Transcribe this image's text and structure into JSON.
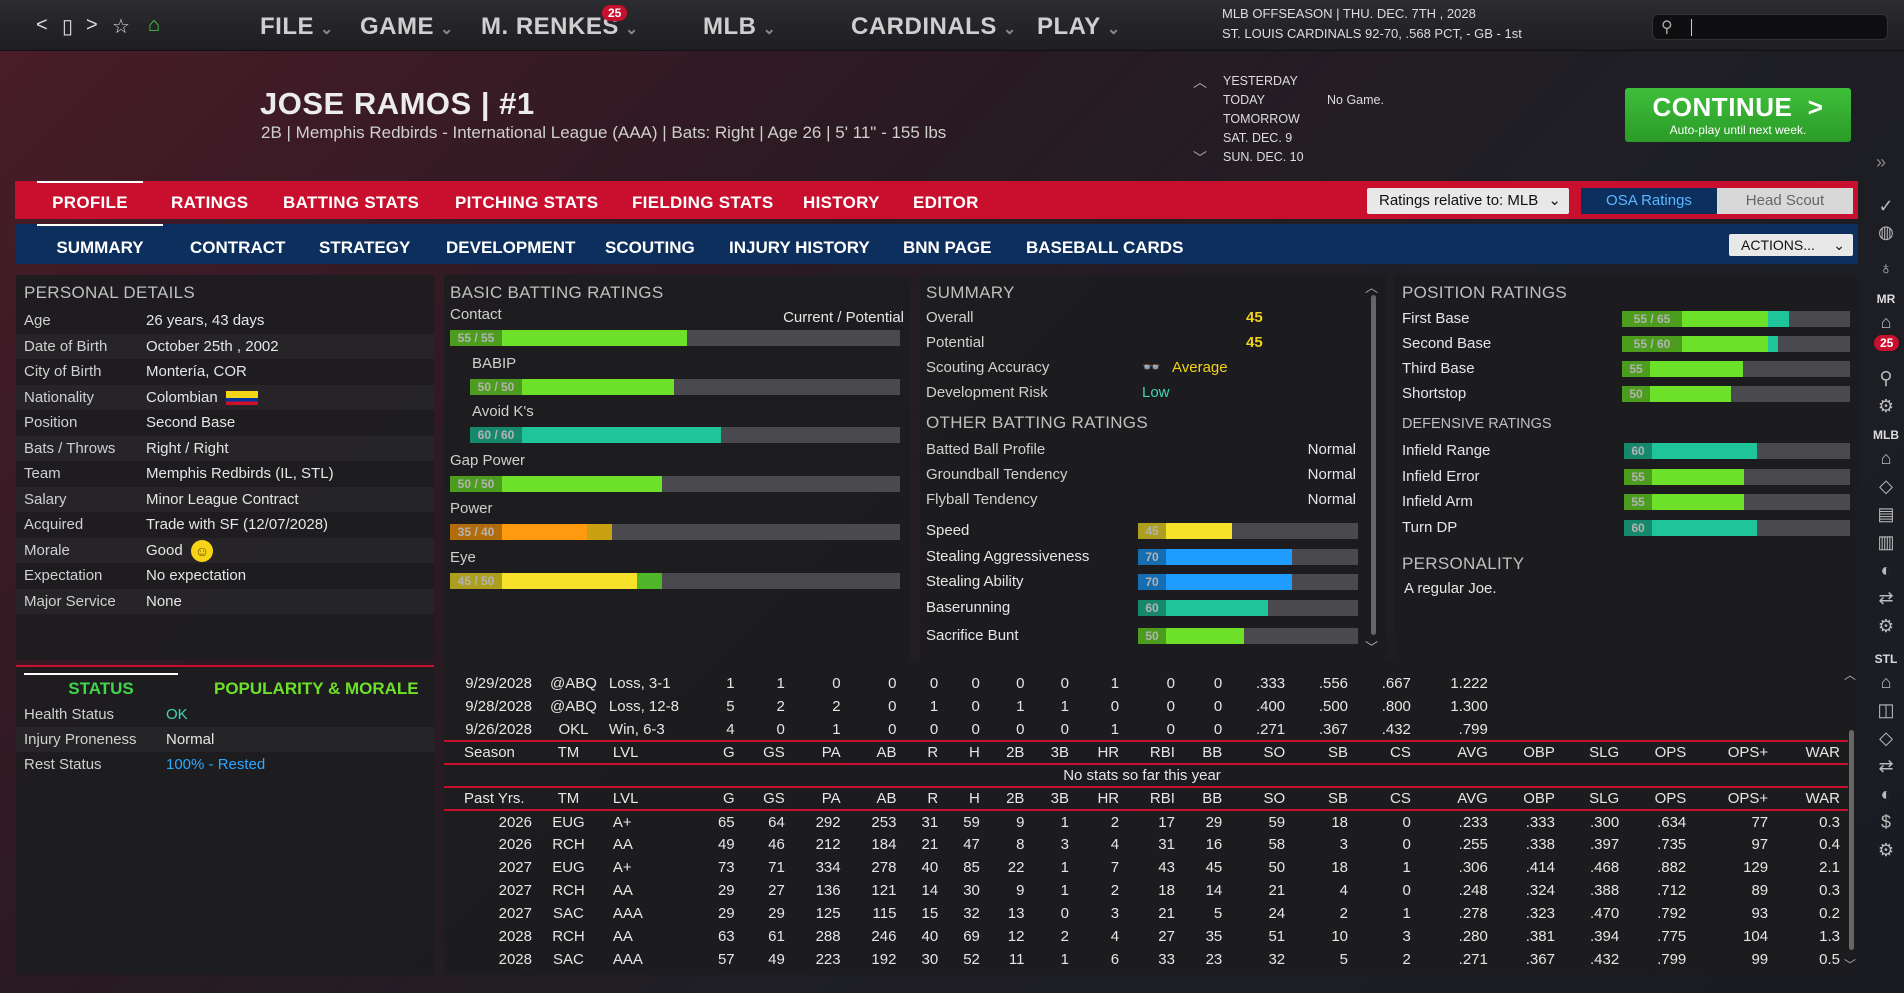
{
  "nav": {
    "back": "<",
    "stop": "▯",
    "forward": ">",
    "star": "☆",
    "home": "⌂"
  },
  "menus": [
    {
      "label": "FILE"
    },
    {
      "label": "GAME"
    },
    {
      "label": "M. RENKES",
      "badge": "25"
    },
    {
      "label": "MLB"
    },
    {
      "label": "CARDINALS"
    },
    {
      "label": "PLAY"
    }
  ],
  "gameinfo": {
    "line1": "MLB OFFSEASON  |  THU. DEC. 7TH , 2028",
    "line2": "ST. LOUIS CARDINALS  92-70, .568 PCT, - GB - 1st"
  },
  "search": {
    "placeholder": ""
  },
  "player": {
    "title": "JOSE RAMOS  |  #1",
    "subtitle": "2B | Memphis Redbirds - International League (AAA)  |  Bats: Right  |  Age 26  |  5' 11\" - 155 lbs"
  },
  "schedule": {
    "days": [
      "YESTERDAY",
      "TODAY",
      "TOMORROW",
      "SAT. DEC. 9",
      "SUN. DEC. 10"
    ],
    "today_note": "No Game."
  },
  "continue": {
    "label": "CONTINUE",
    "sub": "Auto-play until next week.",
    "arrow": ">"
  },
  "tabs1": [
    "PROFILE",
    "RATINGS",
    "BATTING STATS",
    "PITCHING STATS",
    "FIELDING STATS",
    "HISTORY",
    "EDITOR"
  ],
  "ratings_select": "Ratings relative to: MLB",
  "rating_mode": {
    "osa": "OSA Ratings",
    "scout": "Head Scout"
  },
  "tabs2": [
    "SUMMARY",
    "CONTRACT",
    "STRATEGY",
    "DEVELOPMENT",
    "SCOUTING",
    "INJURY HISTORY",
    "BNN PAGE",
    "BASEBALL CARDS"
  ],
  "actions": "ACTIONS...",
  "personal": {
    "title": "PERSONAL DETAILS",
    "rows": [
      {
        "k": "Age",
        "v": "26 years, 43 days"
      },
      {
        "k": "Date of Birth",
        "v": "October 25th , 2002"
      },
      {
        "k": "City of Birth",
        "v": "Montería, COR"
      },
      {
        "k": "Nationality",
        "v": "Colombian"
      },
      {
        "k": "Position",
        "v": "Second Base"
      },
      {
        "k": "Bats / Throws",
        "v": "Right / Right"
      },
      {
        "k": "Team",
        "v": "Memphis Redbirds (IL, STL)"
      },
      {
        "k": "Salary",
        "v": "Minor League Contract"
      },
      {
        "k": "Acquired",
        "v": "Trade with SF (12/07/2028)"
      },
      {
        "k": "Morale",
        "v": "Good"
      },
      {
        "k": "Expectation",
        "v": "No expectation"
      },
      {
        "k": "Major Service",
        "v": "None"
      }
    ]
  },
  "status": {
    "tab1": "STATUS",
    "tab2": "POPULARITY & MORALE",
    "rows": [
      {
        "k": "Health Status",
        "v": "OK"
      },
      {
        "k": "Injury Proneness",
        "v": "Normal"
      },
      {
        "k": "Rest Status",
        "v": "100% - Rested"
      }
    ]
  },
  "batting": {
    "title": "BASIC BATTING RATINGS",
    "cp": "Current / Potential",
    "items": [
      {
        "name": "Contact",
        "label": "55 / 55",
        "cur": 55,
        "pot": 55,
        "color": "#6de02a",
        "pcolor": "#6de02a",
        "indent": 0
      },
      {
        "name": "BABIP",
        "label": "50 / 50",
        "cur": 50,
        "pot": 50,
        "color": "#6de02a",
        "pcolor": "#6de02a",
        "indent": 1
      },
      {
        "name": "Avoid K's",
        "label": "60 / 60",
        "cur": 60,
        "pot": 60,
        "color": "#1fc49a",
        "pcolor": "#1fc49a",
        "indent": 1
      },
      {
        "name": "Gap Power",
        "label": "50 / 50",
        "cur": 50,
        "pot": 50,
        "color": "#6de02a",
        "pcolor": "#6de02a",
        "indent": 0
      },
      {
        "name": "Power",
        "label": "35 / 40",
        "cur": 35,
        "pot": 40,
        "color": "#ff9a10",
        "pcolor": "#c8a012",
        "indent": 0
      },
      {
        "name": "Eye",
        "label": "45 / 50",
        "cur": 45,
        "pot": 50,
        "color": "#f7e22a",
        "pcolor": "#4fb62a",
        "indent": 0
      }
    ]
  },
  "summary": {
    "title": "SUMMARY",
    "overall_k": "Overall",
    "overall_v": "45",
    "potential_k": "Potential",
    "potential_v": "45",
    "scout_k": "Scouting Accuracy",
    "scout_v": "Average",
    "risk_k": "Development Risk",
    "risk_v": "Low",
    "other_title": "OTHER BATTING RATINGS",
    "other": [
      {
        "k": "Batted Ball Profile",
        "v": "Normal"
      },
      {
        "k": "Groundball Tendency",
        "v": "Normal"
      },
      {
        "k": "Flyball Tendency",
        "v": "Normal"
      }
    ],
    "run": [
      {
        "k": "Speed",
        "v": 45,
        "color": "#f7e22a"
      },
      {
        "k": "Stealing Aggressiveness",
        "v": 70,
        "color": "#1e9cff"
      },
      {
        "k": "Stealing Ability",
        "v": 70,
        "color": "#1e9cff"
      },
      {
        "k": "Baserunning",
        "v": 60,
        "color": "#1fc49a"
      },
      {
        "k": "Sacrifice Bunt",
        "v": 50,
        "color": "#6de02a"
      }
    ]
  },
  "position": {
    "title": "POSITION RATINGS",
    "items": [
      {
        "k": "First Base",
        "label": "55 / 65",
        "cur": 55,
        "pot": 65,
        "color": "#6de02a",
        "pcolor": "#1fc49a"
      },
      {
        "k": "Second Base",
        "label": "55 / 60",
        "cur": 55,
        "pot": 60,
        "color": "#6de02a",
        "pcolor": "#1fc49a"
      },
      {
        "k": "Third Base",
        "label": "55",
        "cur": 55,
        "pot": 55,
        "color": "#6de02a",
        "pcolor": "#6de02a"
      },
      {
        "k": "Shortstop",
        "label": "50",
        "cur": 50,
        "pot": 50,
        "color": "#6de02a",
        "pcolor": "#6de02a"
      }
    ],
    "def_title": "DEFENSIVE RATINGS",
    "def": [
      {
        "k": "Infield Range",
        "v": 60,
        "color": "#1fc49a"
      },
      {
        "k": "Infield Error",
        "v": 55,
        "color": "#6de02a"
      },
      {
        "k": "Infield Arm",
        "v": 55,
        "color": "#6de02a"
      },
      {
        "k": "Turn DP",
        "v": 60,
        "color": "#1fc49a"
      }
    ],
    "pers_title": "PERSONALITY",
    "pers": "A regular Joe."
  },
  "games": [
    [
      "9/29/2028",
      "@ABQ",
      "Loss, 3-1",
      "1",
      "1",
      "0",
      "0",
      "0",
      "0",
      "0",
      "0",
      "1",
      "0",
      "0",
      ".333",
      ".556",
      ".667",
      "1.222"
    ],
    [
      "9/28/2028",
      "@ABQ",
      "Loss, 12-8",
      "5",
      "2",
      "2",
      "0",
      "1",
      "0",
      "1",
      "1",
      "0",
      "0",
      "0",
      ".400",
      ".500",
      ".800",
      "1.300"
    ],
    [
      "9/26/2028",
      "OKL",
      "Win, 6-3",
      "4",
      "0",
      "1",
      "0",
      "0",
      "0",
      "0",
      "0",
      "1",
      "0",
      "0",
      ".271",
      ".367",
      ".432",
      ".799"
    ]
  ],
  "season_head": [
    "Season",
    "TM",
    "LVL",
    "G",
    "GS",
    "PA",
    "AB",
    "R",
    "H",
    "2B",
    "3B",
    "HR",
    "RBI",
    "BB",
    "SO",
    "SB",
    "CS",
    "AVG",
    "OBP",
    "SLG",
    "OPS",
    "OPS+",
    "WAR"
  ],
  "no_stats": "No stats so far this year",
  "past_head": [
    "Past Yrs.",
    "TM",
    "LVL",
    "G",
    "GS",
    "PA",
    "AB",
    "R",
    "H",
    "2B",
    "3B",
    "HR",
    "RBI",
    "BB",
    "SO",
    "SB",
    "CS",
    "AVG",
    "OBP",
    "SLG",
    "OPS",
    "OPS+",
    "WAR"
  ],
  "past": [
    [
      "2026",
      "EUG",
      "A+",
      "65",
      "64",
      "292",
      "253",
      "31",
      "59",
      "9",
      "1",
      "2",
      "17",
      "29",
      "59",
      "18",
      "0",
      ".233",
      ".333",
      ".300",
      ".634",
      "77",
      "0.3"
    ],
    [
      "2026",
      "RCH",
      "AA",
      "49",
      "46",
      "212",
      "184",
      "21",
      "47",
      "8",
      "3",
      "4",
      "31",
      "16",
      "58",
      "3",
      "0",
      ".255",
      ".338",
      ".397",
      ".735",
      "97",
      "0.4"
    ],
    [
      "2027",
      "EUG",
      "A+",
      "73",
      "71",
      "334",
      "278",
      "40",
      "85",
      "22",
      "1",
      "7",
      "43",
      "45",
      "50",
      "18",
      "1",
      ".306",
      ".414",
      ".468",
      ".882",
      "129",
      "2.1"
    ],
    [
      "2027",
      "RCH",
      "AA",
      "29",
      "27",
      "136",
      "121",
      "14",
      "30",
      "9",
      "1",
      "2",
      "18",
      "14",
      "21",
      "4",
      "0",
      ".248",
      ".324",
      ".388",
      ".712",
      "89",
      "0.3"
    ],
    [
      "2027",
      "SAC",
      "AAA",
      "29",
      "29",
      "125",
      "115",
      "15",
      "32",
      "13",
      "0",
      "3",
      "21",
      "5",
      "24",
      "2",
      "1",
      ".278",
      ".323",
      ".470",
      ".792",
      "93",
      "0.2"
    ],
    [
      "2028",
      "RCH",
      "AA",
      "63",
      "61",
      "288",
      "246",
      "40",
      "69",
      "12",
      "2",
      "4",
      "27",
      "35",
      "51",
      "10",
      "3",
      ".280",
      ".381",
      ".394",
      ".775",
      "104",
      "1.3"
    ],
    [
      "2028",
      "SAC",
      "AAA",
      "57",
      "49",
      "223",
      "192",
      "30",
      "52",
      "11",
      "1",
      "6",
      "33",
      "23",
      "32",
      "5",
      "2",
      ".271",
      ".367",
      ".432",
      ".799",
      "99",
      "0.5"
    ]
  ],
  "sidebar": {
    "mr": "MR",
    "badge": "25",
    "mlb": "MLB",
    "stl": "STL"
  }
}
